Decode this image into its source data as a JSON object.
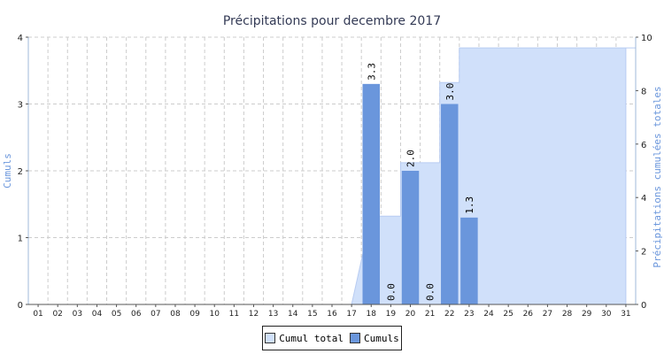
{
  "chart_data": {
    "type": "bar",
    "title": "Précipitations pour decembre 2017",
    "ylabel_left": "Cumuls",
    "ylabel_right": "Précipitations cumulées totales",
    "categories": [
      "01",
      "02",
      "03",
      "04",
      "05",
      "06",
      "07",
      "08",
      "09",
      "10",
      "11",
      "12",
      "13",
      "14",
      "15",
      "16",
      "17",
      "18",
      "19",
      "20",
      "21",
      "22",
      "23",
      "24",
      "25",
      "26",
      "27",
      "28",
      "29",
      "30",
      "31"
    ],
    "ylim_left": [
      0,
      4
    ],
    "yticks_left": [
      "0",
      "1",
      "2",
      "3",
      "4"
    ],
    "ylim_right": [
      0,
      10
    ],
    "yticks_right": [
      "0",
      "2",
      "4",
      "6",
      "8",
      "10"
    ],
    "grid": true,
    "legend_position": "bottom-center",
    "series": [
      {
        "name": "Cumul total",
        "type": "area",
        "axis": "right",
        "color": "#d0e0fa",
        "values": [
          0,
          0,
          0,
          0,
          0,
          0,
          0,
          0,
          0,
          0,
          0,
          0,
          0,
          0,
          0,
          0,
          0,
          3.3,
          3.3,
          5.3,
          5.3,
          8.3,
          9.6,
          9.6,
          9.6,
          9.6,
          9.6,
          9.6,
          9.6,
          9.6,
          9.6
        ]
      },
      {
        "name": "Cumuls",
        "type": "bar",
        "axis": "left",
        "color": "#6a96dc",
        "values": [
          null,
          null,
          null,
          null,
          null,
          null,
          null,
          null,
          null,
          null,
          null,
          null,
          null,
          null,
          null,
          null,
          null,
          3.3,
          0.0,
          2.0,
          0.0,
          3.0,
          1.3,
          null,
          null,
          null,
          null,
          null,
          null,
          null,
          null
        ],
        "labels": [
          "",
          "",
          "",
          "",
          "",
          "",
          "",
          "",
          "",
          "",
          "",
          "",
          "",
          "",
          "",
          "",
          "",
          "3.3",
          "0.0",
          "2.0",
          "0.0",
          "3.0",
          "1.3",
          "",
          "",
          "",
          "",
          "",
          "",
          "",
          ""
        ]
      }
    ]
  }
}
